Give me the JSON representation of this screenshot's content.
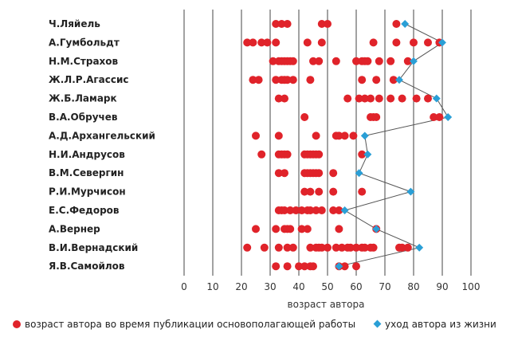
{
  "chart_data": {
    "type": "scatter",
    "xlabel": "возраст автора",
    "xlim": [
      0,
      100
    ],
    "xticks": [
      0,
      10,
      20,
      30,
      40,
      50,
      60,
      70,
      80,
      90,
      100
    ],
    "colors": {
      "publication": "#e0232a",
      "death": "#2a9fd6",
      "line": "#555555",
      "grid": "#444444"
    },
    "legend": {
      "publication": "возраст автора во время публикации основополагающей работы",
      "death": "уход автора из жизни"
    },
    "authors": [
      {
        "name": "Ч.Ляйель",
        "publications": [
          32,
          34,
          36,
          48,
          50,
          74
        ],
        "death": 77
      },
      {
        "name": "А.Гумбольдт",
        "publications": [
          22,
          24,
          27,
          29,
          32,
          43,
          48,
          66,
          74,
          80,
          85,
          89
        ],
        "death": 90
      },
      {
        "name": "Н.М.Страхов",
        "publications": [
          31,
          33,
          34,
          35,
          36,
          37,
          38,
          45,
          47,
          53,
          60,
          62,
          63,
          64,
          68,
          72,
          78
        ],
        "death": 80
      },
      {
        "name": "Ж.Л.Р.Агассис",
        "publications": [
          24,
          26,
          32,
          34,
          35,
          36,
          38,
          44,
          62,
          67,
          73
        ],
        "death": 75
      },
      {
        "name": "Ж.Б.Ламарк",
        "publications": [
          33,
          35,
          57,
          61,
          63,
          65,
          68,
          72,
          76,
          81,
          85
        ],
        "death": 88
      },
      {
        "name": "В.А.Обручев",
        "publications": [
          42,
          65,
          66,
          67,
          87,
          89
        ],
        "death": 92
      },
      {
        "name": "А.Д.Архангельский",
        "publications": [
          25,
          33,
          46,
          53,
          54,
          56,
          59
        ],
        "death": 63
      },
      {
        "name": "Н.И.Андрусов",
        "publications": [
          27,
          33,
          34,
          35,
          36,
          42,
          43,
          44,
          45,
          46,
          47,
          62
        ],
        "death": 64
      },
      {
        "name": "В.М.Севергин",
        "publications": [
          33,
          35,
          42,
          43,
          44,
          45,
          46,
          47,
          52
        ],
        "death": 61
      },
      {
        "name": "Р.И.Мурчисон",
        "publications": [
          42,
          44,
          47,
          52,
          62
        ],
        "death": 79
      },
      {
        "name": "Е.С.Федоров",
        "publications": [
          33,
          34,
          35,
          37,
          39,
          41,
          43,
          44,
          46,
          48,
          52,
          54
        ],
        "death": 56
      },
      {
        "name": "А.Вернер",
        "publications": [
          25,
          32,
          35,
          36,
          37,
          41,
          43,
          54,
          67
        ],
        "death": 67
      },
      {
        "name": "В.И.Вернадский",
        "publications": [
          22,
          28,
          33,
          36,
          38,
          44,
          46,
          47,
          48,
          50,
          53,
          55,
          57,
          58,
          60,
          62,
          63,
          65,
          66,
          75,
          76,
          78
        ],
        "death": 82
      },
      {
        "name": "Я.В.Самойлов",
        "publications": [
          32,
          36,
          40,
          42,
          44,
          45,
          54,
          56,
          60
        ],
        "death": 54
      }
    ]
  }
}
